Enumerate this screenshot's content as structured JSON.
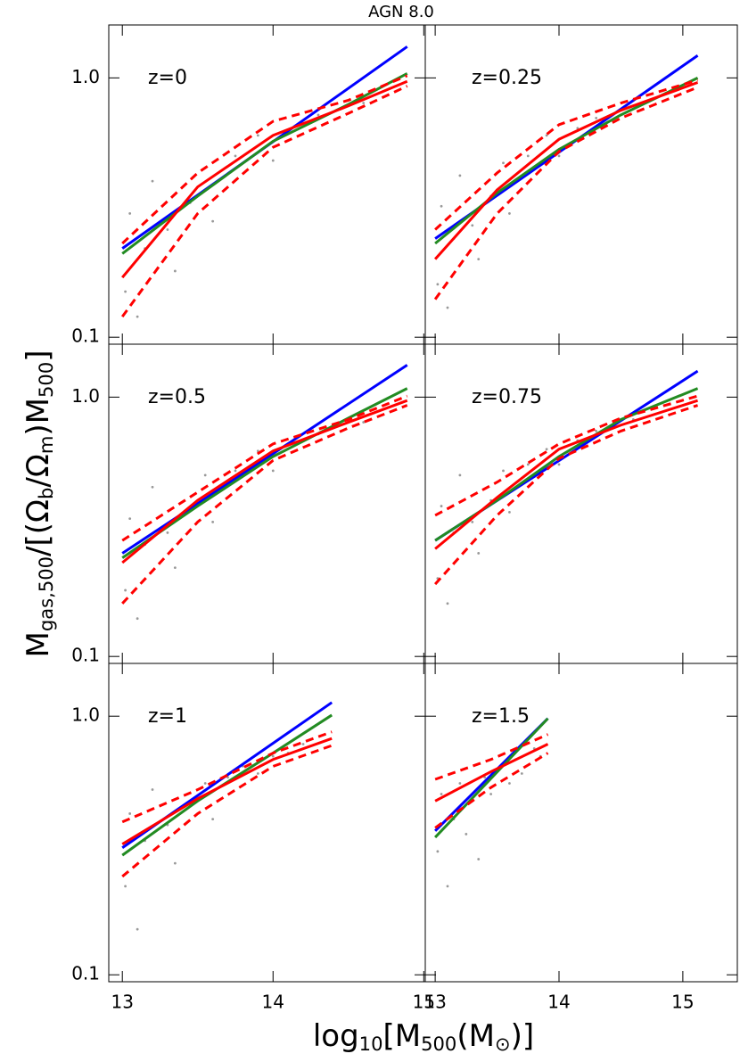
{
  "title": "AGN 8.0",
  "xlabel": [
    "log",
    "10",
    "[M",
    "500",
    "(M",
    "⊙",
    ")]"
  ],
  "ylabel": [
    "M",
    "gas,500",
    "/[(Ω",
    "b",
    "/Ω",
    "m",
    ")M",
    "500",
    "]"
  ],
  "chart_data": [
    {
      "type": "line",
      "annotation": "z=0",
      "log_y": true,
      "xlim": [
        12.91,
        15.01
      ],
      "ylim": [
        0.094,
        1.6
      ],
      "xticks": [
        13,
        14,
        15
      ],
      "yticks": [
        0.1,
        {
          "value": 1,
          "label": "1.0"
        }
      ],
      "points": {
        "color": "#999999",
        "x": [
          13.02,
          13.05,
          13.1,
          13.15,
          13.2,
          13.3,
          13.35,
          13.45,
          13.55,
          13.6,
          13.75,
          13.9,
          14.0,
          14.15,
          14.3,
          14.6
        ],
        "values": [
          0.15,
          0.3,
          0.12,
          0.22,
          0.4,
          0.26,
          0.18,
          0.33,
          0.45,
          0.28,
          0.5,
          0.6,
          0.48,
          0.65,
          0.72,
          0.8
        ]
      },
      "series": [
        {
          "color": "#0000ff",
          "x": [
            13,
            14.89
          ],
          "values": [
            0.22,
            1.32
          ]
        },
        {
          "color": "#228b22",
          "x": [
            13,
            13.5,
            14,
            14.5,
            14.89
          ],
          "values": [
            0.21,
            0.35,
            0.57,
            0.79,
            1.04
          ]
        },
        {
          "color": "#ff0000",
          "x": [
            13,
            13.5,
            14,
            14.5,
            14.89
          ],
          "values": [
            0.17,
            0.38,
            0.6,
            0.78,
            0.97
          ]
        },
        {
          "color": "#ff0000",
          "dash": true,
          "x": [
            13,
            13.5,
            14,
            14.5,
            14.89
          ],
          "values": [
            0.23,
            0.43,
            0.68,
            0.82,
            1.02
          ]
        },
        {
          "color": "#ff0000",
          "dash": true,
          "x": [
            13,
            13.5,
            14,
            14.5,
            14.89
          ],
          "values": [
            0.12,
            0.3,
            0.54,
            0.73,
            0.93
          ]
        }
      ]
    },
    {
      "type": "line",
      "annotation": "z=0.25",
      "log_y": true,
      "xlim": [
        12.92,
        15.44
      ],
      "ylim": [
        0.094,
        1.6
      ],
      "xticks": [
        13,
        14,
        15
      ],
      "yticks": [
        0.1,
        {
          "value": 1,
          "label": "1.0"
        }
      ],
      "points": {
        "color": "#999999",
        "x": [
          13.02,
          13.05,
          13.1,
          13.15,
          13.2,
          13.3,
          13.35,
          13.45,
          13.55,
          13.6,
          13.75,
          13.9,
          14.0,
          14.15,
          14.3,
          14.6
        ],
        "values": [
          0.16,
          0.32,
          0.13,
          0.24,
          0.42,
          0.27,
          0.2,
          0.35,
          0.47,
          0.3,
          0.5,
          0.6,
          0.5,
          0.64,
          0.7,
          0.78
        ]
      },
      "series": [
        {
          "color": "#0000ff",
          "x": [
            13,
            15.12
          ],
          "values": [
            0.24,
            1.22
          ]
        },
        {
          "color": "#228b22",
          "x": [
            13,
            13.5,
            14,
            14.5,
            15.12
          ],
          "values": [
            0.23,
            0.36,
            0.53,
            0.72,
            1.0
          ]
        },
        {
          "color": "#ff0000",
          "x": [
            13,
            13.5,
            14,
            14.5,
            15.12
          ],
          "values": [
            0.2,
            0.37,
            0.58,
            0.75,
            0.96
          ]
        },
        {
          "color": "#ff0000",
          "dash": true,
          "x": [
            13,
            13.5,
            14,
            14.5,
            15.12
          ],
          "values": [
            0.26,
            0.43,
            0.66,
            0.8,
            0.98
          ]
        },
        {
          "color": "#ff0000",
          "dash": true,
          "x": [
            13,
            13.5,
            14,
            14.5,
            15.12
          ],
          "values": [
            0.14,
            0.3,
            0.52,
            0.7,
            0.92
          ]
        }
      ]
    },
    {
      "type": "line",
      "annotation": "z=0.5",
      "log_y": true,
      "xlim": [
        12.91,
        15.01
      ],
      "ylim": [
        0.094,
        1.6
      ],
      "xticks": [
        13,
        14,
        15
      ],
      "yticks": [
        0.1,
        {
          "value": 1,
          "label": "1.0"
        }
      ],
      "points": {
        "color": "#999999",
        "x": [
          13.02,
          13.05,
          13.1,
          13.15,
          13.2,
          13.3,
          13.35,
          13.45,
          13.55,
          13.6,
          13.75,
          13.9,
          14.0,
          14.15,
          14.3,
          14.6
        ],
        "values": [
          0.18,
          0.34,
          0.14,
          0.27,
          0.45,
          0.3,
          0.22,
          0.37,
          0.5,
          0.33,
          0.52,
          0.62,
          0.52,
          0.66,
          0.72,
          0.8
        ]
      },
      "series": [
        {
          "color": "#0000ff",
          "x": [
            13,
            14.89
          ],
          "values": [
            0.25,
            1.33
          ]
        },
        {
          "color": "#228b22",
          "x": [
            13,
            13.5,
            14,
            14.5,
            14.89
          ],
          "values": [
            0.24,
            0.38,
            0.59,
            0.83,
            1.08
          ]
        },
        {
          "color": "#ff0000",
          "x": [
            13,
            13.5,
            14,
            14.5,
            14.89
          ],
          "values": [
            0.23,
            0.4,
            0.62,
            0.8,
            0.97
          ]
        },
        {
          "color": "#ff0000",
          "dash": true,
          "x": [
            13,
            13.5,
            14,
            14.5,
            14.89
          ],
          "values": [
            0.28,
            0.43,
            0.66,
            0.82,
            1.01
          ]
        },
        {
          "color": "#ff0000",
          "dash": true,
          "x": [
            13,
            13.5,
            14,
            14.5,
            14.89
          ],
          "values": [
            0.16,
            0.33,
            0.57,
            0.76,
            0.93
          ]
        }
      ]
    },
    {
      "type": "line",
      "annotation": "z=0.75",
      "log_y": true,
      "xlim": [
        12.92,
        15.44
      ],
      "ylim": [
        0.094,
        1.6
      ],
      "xticks": [
        13,
        14,
        15
      ],
      "yticks": [
        0.1,
        {
          "value": 1,
          "label": "1.0"
        }
      ],
      "points": {
        "color": "#999999",
        "x": [
          13.02,
          13.05,
          13.1,
          13.15,
          13.2,
          13.3,
          13.35,
          13.45,
          13.55,
          13.6,
          13.75,
          13.9,
          14.0,
          14.15,
          14.3,
          14.6
        ],
        "values": [
          0.2,
          0.38,
          0.16,
          0.3,
          0.5,
          0.33,
          0.25,
          0.4,
          0.52,
          0.36,
          0.55,
          0.63,
          0.55,
          0.68,
          0.74,
          0.82
        ]
      },
      "series": [
        {
          "color": "#0000ff",
          "x": [
            13,
            15.12
          ],
          "values": [
            0.28,
            1.26
          ]
        },
        {
          "color": "#228b22",
          "x": [
            13,
            13.5,
            14,
            14.5,
            15.12
          ],
          "values": [
            0.28,
            0.4,
            0.59,
            0.82,
            1.08
          ]
        },
        {
          "color": "#ff0000",
          "x": [
            13,
            13.5,
            14,
            14.5,
            15.12
          ],
          "values": [
            0.26,
            0.41,
            0.63,
            0.78,
            0.97
          ]
        },
        {
          "color": "#ff0000",
          "dash": true,
          "x": [
            13,
            13.5,
            14,
            14.5,
            15.12
          ],
          "values": [
            0.35,
            0.47,
            0.66,
            0.83,
            1.01
          ]
        },
        {
          "color": "#ff0000",
          "dash": true,
          "x": [
            13,
            13.5,
            14,
            14.5,
            15.12
          ],
          "values": [
            0.19,
            0.35,
            0.58,
            0.74,
            0.93
          ]
        }
      ]
    },
    {
      "type": "line",
      "annotation": "z=1",
      "log_y": true,
      "xlim": [
        12.91,
        15.01
      ],
      "ylim": [
        0.094,
        1.6
      ],
      "xticks": [
        13,
        14,
        15
      ],
      "yticks": [
        0.1,
        {
          "value": 1,
          "label": "1.0"
        }
      ],
      "points": {
        "color": "#999999",
        "x": [
          13.02,
          13.05,
          13.1,
          13.15,
          13.2,
          13.3,
          13.35,
          13.45,
          13.55,
          13.6,
          13.7,
          13.8,
          13.9,
          14.0,
          14.1,
          14.2
        ],
        "values": [
          0.22,
          0.42,
          0.15,
          0.33,
          0.52,
          0.38,
          0.27,
          0.45,
          0.55,
          0.4,
          0.58,
          0.64,
          0.6,
          0.7,
          0.72,
          0.78
        ]
      },
      "series": [
        {
          "color": "#0000ff",
          "x": [
            13,
            14.39
          ],
          "values": [
            0.31,
            1.13
          ]
        },
        {
          "color": "#228b22",
          "x": [
            13,
            13.5,
            14,
            14.39
          ],
          "values": [
            0.29,
            0.47,
            0.72,
            1.01
          ]
        },
        {
          "color": "#ff0000",
          "x": [
            13,
            13.5,
            14,
            14.39
          ],
          "values": [
            0.32,
            0.48,
            0.68,
            0.82
          ]
        },
        {
          "color": "#ff0000",
          "dash": true,
          "x": [
            13,
            13.5,
            14,
            14.39
          ],
          "values": [
            0.39,
            0.52,
            0.72,
            0.87
          ]
        },
        {
          "color": "#ff0000",
          "dash": true,
          "x": [
            13,
            13.5,
            14,
            14.39
          ],
          "values": [
            0.24,
            0.42,
            0.64,
            0.77
          ]
        }
      ]
    },
    {
      "type": "line",
      "annotation": "z=1.5",
      "log_y": true,
      "xlim": [
        12.92,
        15.44
      ],
      "ylim": [
        0.094,
        1.6
      ],
      "xticks": [
        13,
        14,
        15
      ],
      "yticks": [
        0.1,
        {
          "value": 1,
          "label": "1.0"
        }
      ],
      "points": {
        "color": "#999999",
        "x": [
          13.02,
          13.05,
          13.1,
          13.15,
          13.2,
          13.25,
          13.3,
          13.35,
          13.4,
          13.45,
          13.5,
          13.6,
          13.65,
          13.7,
          13.8,
          13.85
        ],
        "values": [
          0.3,
          0.5,
          0.22,
          0.4,
          0.55,
          0.35,
          0.47,
          0.28,
          0.58,
          0.5,
          0.62,
          0.55,
          0.68,
          0.6,
          0.75,
          0.7
        ]
      },
      "series": [
        {
          "color": "#0000ff",
          "x": [
            13,
            13.91
          ],
          "values": [
            0.36,
            0.98
          ]
        },
        {
          "color": "#228b22",
          "x": [
            13,
            13.91
          ],
          "values": [
            0.34,
            0.98
          ]
        },
        {
          "color": "#ff0000",
          "x": [
            13,
            13.45,
            13.91
          ],
          "values": [
            0.47,
            0.61,
            0.78
          ]
        },
        {
          "color": "#ff0000",
          "dash": true,
          "x": [
            13,
            13.45,
            13.91
          ],
          "values": [
            0.57,
            0.68,
            0.85
          ]
        },
        {
          "color": "#ff0000",
          "dash": true,
          "x": [
            13,
            13.45,
            13.91
          ],
          "values": [
            0.37,
            0.53,
            0.72
          ]
        }
      ]
    }
  ]
}
